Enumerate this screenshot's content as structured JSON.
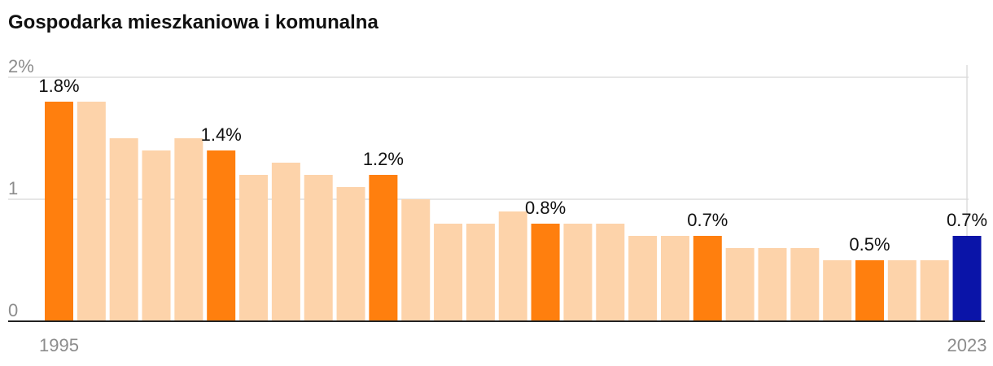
{
  "chart_data": {
    "type": "bar",
    "title": "Gospodarka mieszkaniowa i komunalna",
    "xlabel": "",
    "ylabel": "",
    "ylim": [
      0,
      2
    ],
    "y_ticks": [
      {
        "value": 0,
        "label": "0"
      },
      {
        "value": 1,
        "label": "1"
      },
      {
        "value": 2,
        "label": "2%"
      }
    ],
    "x_tick_labels": [
      {
        "category": "1995",
        "label": "1995"
      },
      {
        "category": "2023",
        "label": "2023"
      }
    ],
    "grid": true,
    "categories": [
      "1995",
      "1996",
      "1997",
      "1998",
      "1999",
      "2000",
      "2001",
      "2002",
      "2003",
      "2004",
      "2005",
      "2006",
      "2007",
      "2008",
      "2009",
      "2010",
      "2011",
      "2012",
      "2013",
      "2014",
      "2015",
      "2016",
      "2017",
      "2018",
      "2019",
      "2020",
      "2021",
      "2022",
      "2023"
    ],
    "values": [
      1.8,
      1.8,
      1.5,
      1.4,
      1.5,
      1.4,
      1.2,
      1.3,
      1.2,
      1.1,
      1.2,
      1.0,
      0.8,
      0.8,
      0.9,
      0.8,
      0.8,
      0.8,
      0.7,
      0.7,
      0.7,
      0.6,
      0.6,
      0.6,
      0.5,
      0.5,
      0.5,
      0.5,
      0.7
    ],
    "highlight_years": [
      "1995",
      "2000",
      "2005",
      "2010",
      "2015",
      "2020"
    ],
    "latest_year": "2023",
    "data_labels": [
      {
        "category": "1995",
        "label": "1.8%"
      },
      {
        "category": "2000",
        "label": "1.4%"
      },
      {
        "category": "2005",
        "label": "1.2%"
      },
      {
        "category": "2010",
        "label": "0.8%"
      },
      {
        "category": "2015",
        "label": "0.7%"
      },
      {
        "category": "2020",
        "label": "0.5%"
      },
      {
        "category": "2023",
        "label": "0.7%"
      }
    ],
    "colors": {
      "base": "#fdd3aa",
      "highlight": "#ff7f0e",
      "latest": "#0a14a8",
      "grid": "#dddddd",
      "axis": "#222222",
      "tick": "#8c8c8c",
      "label": "#111111"
    }
  }
}
